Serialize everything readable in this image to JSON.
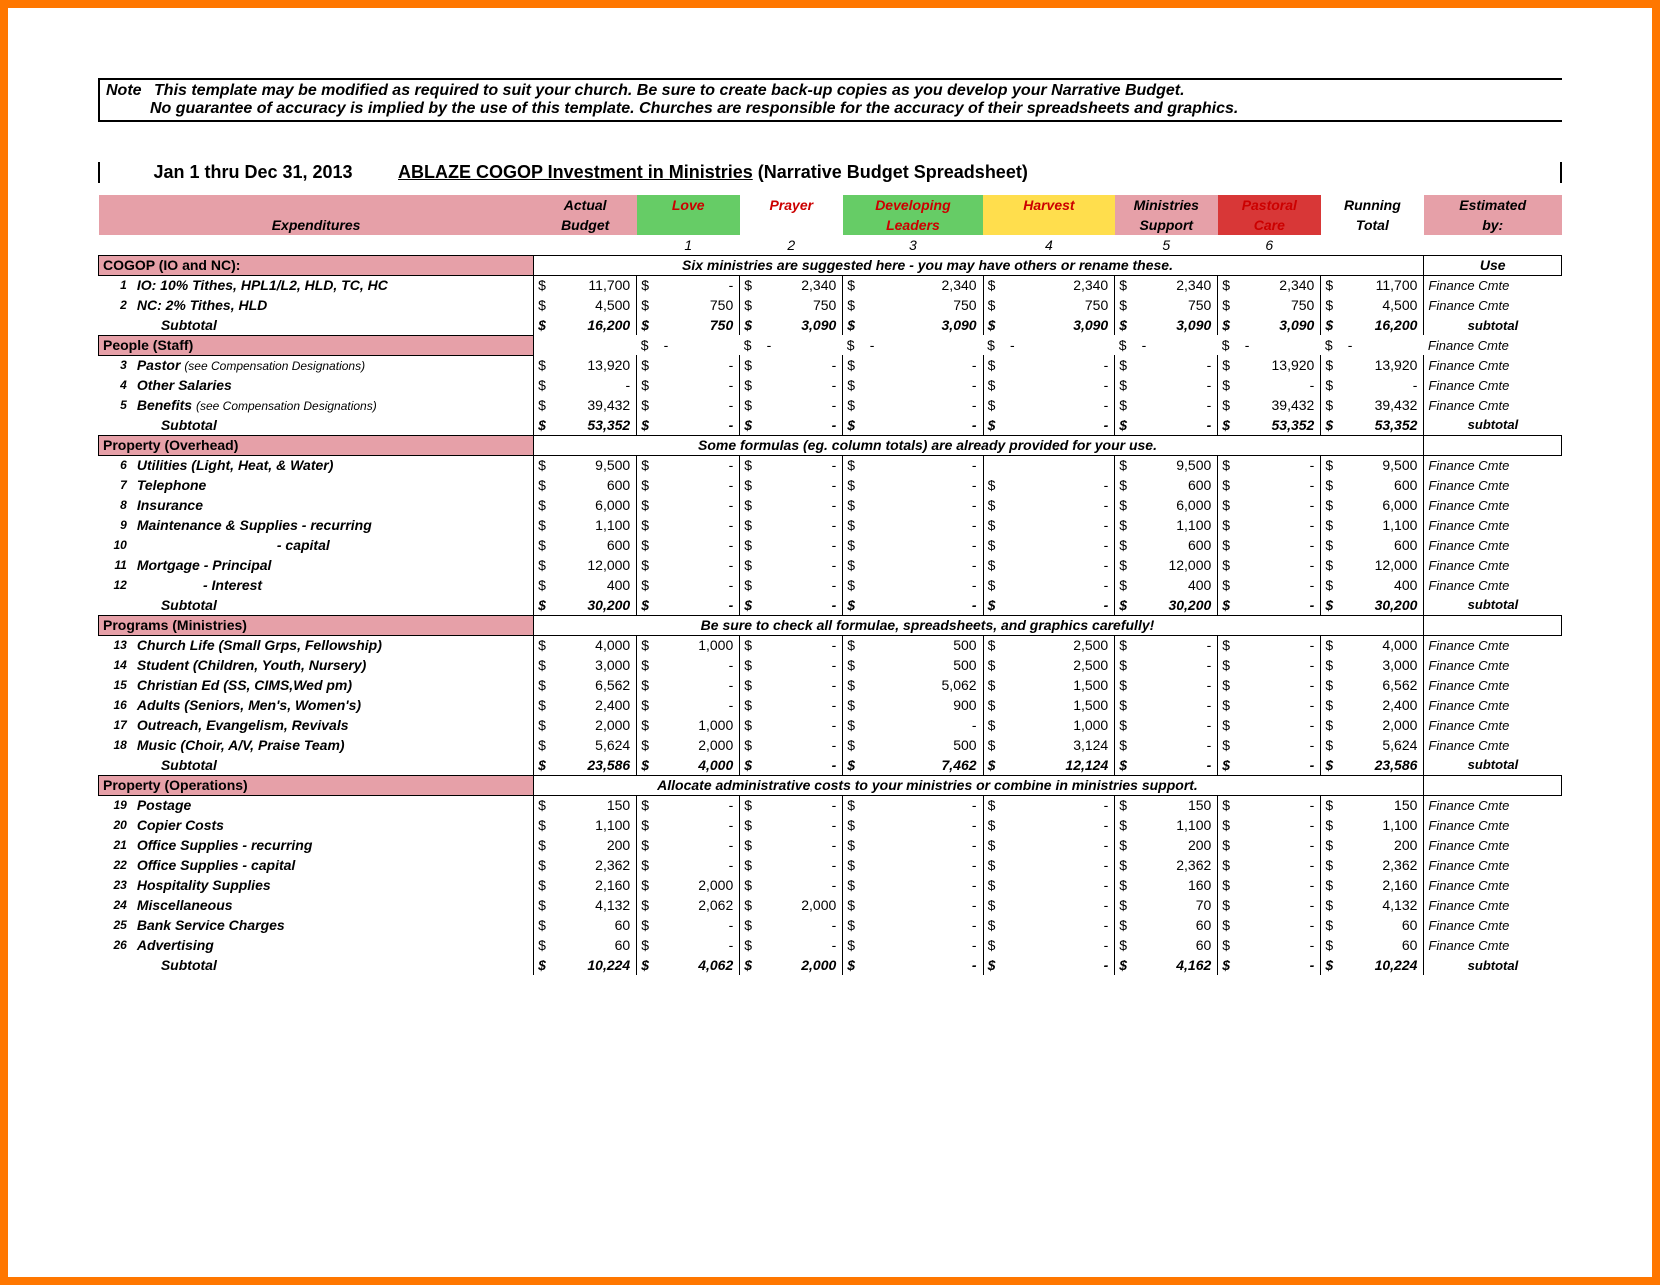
{
  "note": {
    "title": "Note",
    "line1": "This template may be modified as required to suit your church.  Be sure to create back-up copies as you develop your Narrative Budget.",
    "line2": "No guarantee of accuracy is implied by the use of this template.  Churches are responsible for the accuracy of their spreadsheets and graphics."
  },
  "title": {
    "date_range": "Jan 1 thru Dec 31, 2013",
    "main_underlined": "ABLAZE COGOP  Investment in Ministries",
    "main_rest": "(Narrative Budget Spreadsheet)"
  },
  "colors": {
    "pink": "#e6a0a8",
    "green": "#66cc66",
    "yellow": "#ffde4d",
    "red": "#d83737",
    "red_text": "#cc0000",
    "banner_bg": "#ffffff"
  },
  "headers": {
    "expenditures": "Expenditures",
    "actual": "Actual",
    "budget": "Budget",
    "love": "Love",
    "prayer": "Prayer",
    "developing": "Developing",
    "leaders": "Leaders",
    "harvest": "Harvest",
    "ministries": "Ministries",
    "support": "Support",
    "pastoral": "Pastoral",
    "care": "Care",
    "running": "Running",
    "total": "Total",
    "estimated": "Estimated",
    "by": "by:",
    "nums": [
      "1",
      "2",
      "3",
      "4",
      "5",
      "6"
    ],
    "use": "Use"
  },
  "sections": [
    {
      "label": "COGOP (IO and NC):",
      "banner": "Six ministries are suggested here - you may have others or rename these.",
      "rows": [
        {
          "n": "1",
          "desc": "IO: 10% Tithes, HPL1/L2, HLD, TC, HC",
          "actual": "11,700",
          "c": [
            "-",
            "2,340",
            "2,340",
            "2,340",
            "2,340",
            "2,340"
          ],
          "rt": "11,700",
          "est": "Finance Cmte"
        },
        {
          "n": "2",
          "desc": "NC: 2% Tithes, HLD",
          "actual": "4,500",
          "c": [
            "750",
            "750",
            "750",
            "750",
            "750",
            "750"
          ],
          "rt": "4,500",
          "est": "Finance Cmte"
        }
      ],
      "subtotal": {
        "desc": "Subtotal",
        "actual": "16,200",
        "c": [
          "750",
          "3,090",
          "3,090",
          "3,090",
          "3,090",
          "3,090"
        ],
        "rt": "16,200",
        "est": "subtotal"
      }
    },
    {
      "label": "People (Staff)",
      "banner": "",
      "first_row_no_actual": true,
      "rows": [
        {
          "n": "",
          "desc": "",
          "actual": "",
          "c": [
            "-",
            "-",
            "-",
            "-",
            "-",
            "-"
          ],
          "rt": "-",
          "est": "Finance Cmte",
          "no_num": true
        },
        {
          "n": "3",
          "desc": "Pastor",
          "desc_sub": "(see Compensation Designations)",
          "actual": "13,920",
          "c": [
            "-",
            "-",
            "-",
            "-",
            "-",
            "13,920"
          ],
          "rt": "13,920",
          "est": "Finance Cmte"
        },
        {
          "n": "4",
          "desc": "Other Salaries",
          "actual": "-",
          "c": [
            "-",
            "-",
            "-",
            "-",
            "-",
            "-"
          ],
          "rt": "-",
          "est": "Finance Cmte"
        },
        {
          "n": "5",
          "desc": "Benefits",
          "desc_sub": "(see Compensation Designations)",
          "actual": "39,432",
          "c": [
            "-",
            "-",
            "-",
            "-",
            "-",
            "39,432"
          ],
          "rt": "39,432",
          "est": "Finance Cmte"
        }
      ],
      "subtotal": {
        "desc": "Subtotal",
        "actual": "53,352",
        "c": [
          "-",
          "-",
          "-",
          "-",
          "-",
          "53,352"
        ],
        "rt": "53,352",
        "est": "subtotal"
      }
    },
    {
      "label": "Property (Overhead)",
      "banner": "Some formulas (eg. column totals) are already provided for your use.",
      "rows": [
        {
          "n": "6",
          "desc": "Utilities (Light, Heat, & Water)",
          "actual": "9,500",
          "c": [
            "-",
            "-",
            "-",
            "",
            "9,500",
            "-"
          ],
          "rt": "9,500",
          "est": "Finance Cmte",
          "blank4": true
        },
        {
          "n": "7",
          "desc": "Telephone",
          "actual": "600",
          "c": [
            "-",
            "-",
            "-",
            "-",
            "600",
            "-"
          ],
          "rt": "600",
          "est": "Finance Cmte"
        },
        {
          "n": "8",
          "desc": "Insurance",
          "actual": "6,000",
          "c": [
            "-",
            "-",
            "-",
            "-",
            "6,000",
            "-"
          ],
          "rt": "6,000",
          "est": "Finance Cmte"
        },
        {
          "n": "9",
          "desc": "Maintenance & Supplies - recurring",
          "actual": "1,100",
          "c": [
            "-",
            "-",
            "-",
            "-",
            "1,100",
            "-"
          ],
          "rt": "1,100",
          "est": "Finance Cmte"
        },
        {
          "n": "10",
          "desc": "                                    - capital",
          "actual": "600",
          "c": [
            "-",
            "-",
            "-",
            "-",
            "600",
            "-"
          ],
          "rt": "600",
          "est": "Finance Cmte",
          "pre": true
        },
        {
          "n": "11",
          "desc": "Mortgage  - Principal",
          "actual": "12,000",
          "c": [
            "-",
            "-",
            "-",
            "-",
            "12,000",
            "-"
          ],
          "rt": "12,000",
          "est": "Finance Cmte"
        },
        {
          "n": "12",
          "desc": "                 - Interest",
          "actual": "400",
          "c": [
            "-",
            "-",
            "-",
            "-",
            "400",
            "-"
          ],
          "rt": "400",
          "est": "Finance Cmte",
          "pre": true
        }
      ],
      "subtotal": {
        "desc": "Subtotal",
        "actual": "30,200",
        "c": [
          "-",
          "-",
          "-",
          "-",
          "30,200",
          "-"
        ],
        "rt": "30,200",
        "est": "subtotal"
      }
    },
    {
      "label": "Programs (Ministries)",
      "banner": "Be sure to check all formulae, spreadsheets, and graphics carefully!",
      "rows": [
        {
          "n": "13",
          "desc": "Church Life (Small Grps, Fellowship)",
          "actual": "4,000",
          "c": [
            "1,000",
            "-",
            "500",
            "2,500",
            "-",
            "-"
          ],
          "rt": "4,000",
          "est": "Finance Cmte"
        },
        {
          "n": "14",
          "desc": "Student (Children, Youth, Nursery)",
          "actual": "3,000",
          "c": [
            "-",
            "-",
            "500",
            "2,500",
            "-",
            "-"
          ],
          "rt": "3,000",
          "est": "Finance Cmte"
        },
        {
          "n": "15",
          "desc": "Christian Ed (SS, CIMS,Wed pm)",
          "actual": "6,562",
          "c": [
            "-",
            "-",
            "5,062",
            "1,500",
            "-",
            "-"
          ],
          "rt": "6,562",
          "est": "Finance Cmte"
        },
        {
          "n": "16",
          "desc": "Adults (Seniors, Men's, Women's)",
          "actual": "2,400",
          "c": [
            "-",
            "-",
            "900",
            "1,500",
            "-",
            "-"
          ],
          "rt": "2,400",
          "est": "Finance Cmte"
        },
        {
          "n": "17",
          "desc": "Outreach, Evangelism, Revivals",
          "actual": "2,000",
          "c": [
            "1,000",
            "-",
            "-",
            "1,000",
            "-",
            "-"
          ],
          "rt": "2,000",
          "est": "Finance Cmte"
        },
        {
          "n": "18",
          "desc": "Music (Choir, A/V, Praise Team)",
          "actual": "5,624",
          "c": [
            "2,000",
            "-",
            "500",
            "3,124",
            "-",
            "-"
          ],
          "rt": "5,624",
          "est": "Finance Cmte"
        }
      ],
      "subtotal": {
        "desc": "Subtotal",
        "actual": "23,586",
        "c": [
          "4,000",
          "-",
          "7,462",
          "12,124",
          "-",
          "-"
        ],
        "rt": "23,586",
        "est": "subtotal"
      }
    },
    {
      "label": "Property (Operations)",
      "banner": "Allocate administrative costs to your ministries or combine in ministries support.",
      "rows": [
        {
          "n": "19",
          "desc": "Postage",
          "actual": "150",
          "c": [
            "-",
            "-",
            "-",
            "-",
            "150",
            "-"
          ],
          "rt": "150",
          "est": "Finance Cmte"
        },
        {
          "n": "20",
          "desc": "Copier Costs",
          "actual": "1,100",
          "c": [
            "-",
            "-",
            "-",
            "-",
            "1,100",
            "-"
          ],
          "rt": "1,100",
          "est": "Finance Cmte"
        },
        {
          "n": "21",
          "desc": "Office Supplies - recurring",
          "actual": "200",
          "c": [
            "-",
            "-",
            "-",
            "-",
            "200",
            "-"
          ],
          "rt": "200",
          "est": "Finance Cmte"
        },
        {
          "n": "22",
          "desc": "Office Supplies - capital",
          "actual": "2,362",
          "c": [
            "-",
            "-",
            "-",
            "-",
            "2,362",
            "-"
          ],
          "rt": "2,362",
          "est": "Finance Cmte"
        },
        {
          "n": "23",
          "desc": "Hospitality Supplies",
          "actual": "2,160",
          "c": [
            "2,000",
            "-",
            "-",
            "-",
            "160",
            "-"
          ],
          "rt": "2,160",
          "est": "Finance Cmte"
        },
        {
          "n": "24",
          "desc": "Miscellaneous",
          "actual": "4,132",
          "c": [
            "2,062",
            "2,000",
            "-",
            "-",
            "70",
            "-"
          ],
          "rt": "4,132",
          "est": "Finance Cmte"
        },
        {
          "n": "25",
          "desc": "Bank Service Charges",
          "actual": "60",
          "c": [
            "-",
            "-",
            "-",
            "-",
            "60",
            "-"
          ],
          "rt": "60",
          "est": "Finance Cmte"
        },
        {
          "n": "26",
          "desc": "Advertising",
          "actual": "60",
          "c": [
            "-",
            "-",
            "-",
            "-",
            "60",
            "-"
          ],
          "rt": "60",
          "est": "Finance Cmte"
        }
      ],
      "subtotal": {
        "desc": "Subtotal",
        "actual": "10,224",
        "c": [
          "4,062",
          "2,000",
          "-",
          "-",
          "4,162",
          "-"
        ],
        "rt": "10,224",
        "est": "subtotal"
      }
    }
  ]
}
